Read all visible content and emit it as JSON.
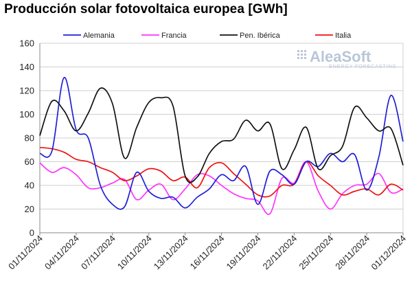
{
  "title": "Producción solar fotovoltaica europea [GWh]",
  "brand": {
    "name": "AleaSoft",
    "tagline": "ENERGY FORECASTING"
  },
  "colors": {
    "Alemania": "#1f1fd6",
    "Francia": "#ff33ff",
    "Pen. Ibérica": "#111111",
    "Italia": "#ee1111"
  },
  "chart_data": {
    "type": "line",
    "title": "Producción solar fotovoltaica europea [GWh]",
    "ylim": [
      0,
      160
    ],
    "yticks": [
      0,
      20,
      40,
      60,
      80,
      100,
      120,
      140,
      160
    ],
    "x_ticks": [
      "01/11/2024",
      "04/11/2024",
      "07/11/2024",
      "10/11/2024",
      "13/11/2024",
      "16/11/2024",
      "19/11/2024",
      "22/11/2024",
      "25/11/2024",
      "28/11/2024",
      "01/12/2024"
    ],
    "legend_position": "top",
    "grid": true,
    "series": [
      {
        "name": "Alemania",
        "values": [
          67,
          69,
          131,
          87,
          80,
          40,
          24,
          22,
          51,
          35,
          29,
          30,
          21,
          30,
          37,
          49,
          44,
          56,
          24,
          52,
          49,
          41,
          60,
          56,
          67,
          60,
          66,
          36,
          64,
          116,
          77
        ]
      },
      {
        "name": "Francia",
        "values": [
          59,
          51,
          55,
          49,
          38,
          38,
          42,
          45,
          28,
          36,
          41,
          28,
          37,
          49,
          48,
          40,
          33,
          29,
          27,
          16,
          46,
          42,
          60,
          35,
          20,
          33,
          40,
          41,
          50,
          34,
          37
        ]
      },
      {
        "name": "Pen. Ibérica",
        "values": [
          82,
          111,
          103,
          86,
          101,
          122,
          109,
          63,
          89,
          110,
          114,
          107,
          48,
          47,
          67,
          77,
          79,
          95,
          86,
          92,
          54,
          70,
          89,
          54,
          65,
          73,
          106,
          97,
          86,
          88,
          57
        ]
      },
      {
        "name": "Italia",
        "values": [
          72,
          71,
          68,
          62,
          60,
          55,
          51,
          44,
          48,
          54,
          52,
          44,
          47,
          38,
          55,
          59,
          50,
          41,
          32,
          31,
          40,
          41,
          60,
          48,
          40,
          32,
          35,
          37,
          32,
          41,
          36
        ]
      }
    ]
  }
}
